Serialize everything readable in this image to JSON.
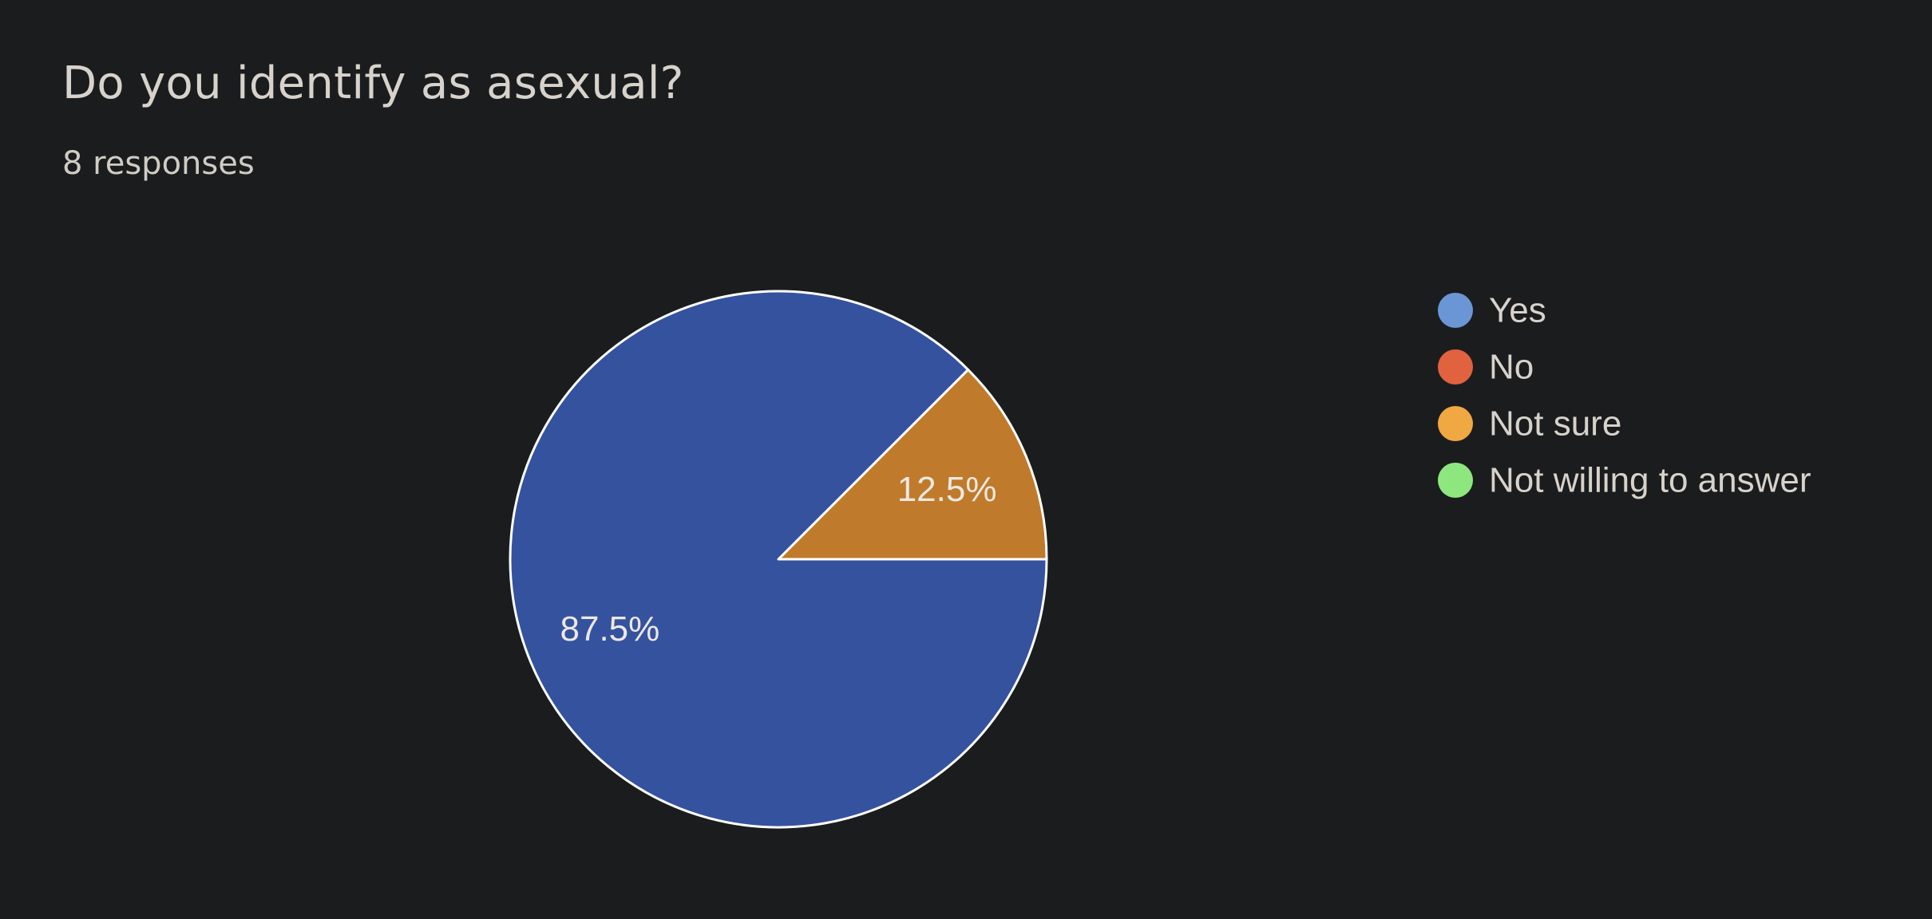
{
  "question": {
    "title": "Do you identify as asexual?",
    "responses": "8 responses"
  },
  "chart_data": {
    "type": "pie",
    "title": "Do you identify as asexual?",
    "categories": [
      "Yes",
      "No",
      "Not sure",
      "Not willing to answer"
    ],
    "values": [
      87.5,
      0,
      12.5,
      0
    ],
    "value_labels": [
      "87.5%",
      "",
      "12.5%",
      ""
    ],
    "legend_colors": [
      "#6a96d6",
      "#e0623f",
      "#f0a842",
      "#8ee67f"
    ],
    "slice_colors": [
      "#35529f",
      "#c24d2f",
      "#bf7b2b",
      "#5fb04f"
    ],
    "slice_stroke": "#ffffff",
    "legend_position": "right"
  }
}
